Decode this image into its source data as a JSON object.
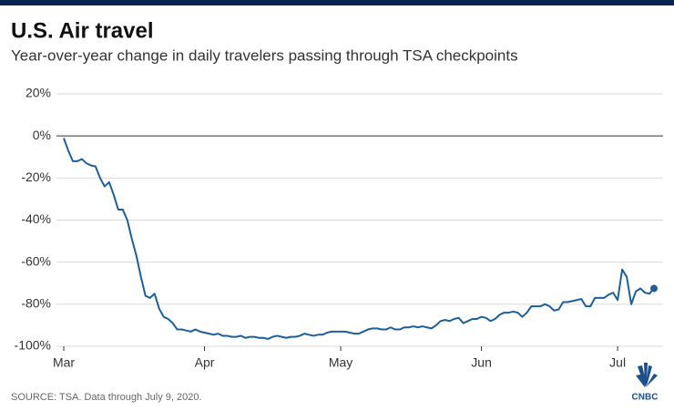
{
  "chart_data": {
    "type": "line",
    "title": "U.S. Air travel",
    "subtitle": "Year-over-year change in daily travelers passing through TSA checkpoints",
    "source": "SOURCE: TSA. Data through July 9, 2020.",
    "logo": "CNBC",
    "x": [
      0,
      1,
      2,
      3,
      4,
      5,
      6,
      7,
      8,
      9,
      10,
      11,
      12,
      13,
      14,
      15,
      16,
      17,
      18,
      19,
      20,
      21,
      22,
      23,
      24,
      25,
      26,
      27,
      28,
      29,
      30,
      31,
      32,
      33,
      34,
      35,
      36,
      37,
      38,
      39,
      40,
      41,
      42,
      43,
      44,
      45,
      46,
      47,
      48,
      49,
      50,
      51,
      52,
      53,
      54,
      55,
      56,
      57,
      58,
      59,
      60,
      61,
      62,
      63,
      64,
      65,
      66,
      67,
      68,
      69,
      70,
      71,
      72,
      73,
      74,
      75,
      76,
      77,
      78,
      79,
      80,
      81,
      82,
      83,
      84,
      85,
      86,
      87,
      88,
      89,
      90,
      91,
      92,
      93,
      94,
      95,
      96,
      97,
      98,
      99,
      100,
      101,
      102,
      103,
      104,
      105,
      106,
      107,
      108,
      109,
      110,
      111,
      112,
      113,
      114,
      115,
      116,
      117,
      118,
      119,
      120,
      121,
      122,
      123,
      124,
      125,
      126,
      127,
      128,
      129,
      130
    ],
    "series": [
      {
        "name": "Year-over-year change",
        "color": "#1d5f99",
        "values": [
          -1,
          -7,
          -12,
          -12,
          -11,
          -13,
          -14,
          -14.5,
          -20,
          -24,
          -22,
          -28,
          -35,
          -35,
          -40,
          -49,
          -57,
          -67,
          -76,
          -77,
          -75,
          -82,
          -86,
          -87,
          -89,
          -92,
          -92,
          -92.5,
          -93,
          -92,
          -93,
          -93.5,
          -94,
          -94.5,
          -94,
          -95,
          -95,
          -95.5,
          -95.5,
          -95,
          -96,
          -95.5,
          -95.5,
          -96,
          -96,
          -96.5,
          -95.5,
          -95,
          -95.5,
          -96,
          -95.5,
          -95.5,
          -95,
          -94,
          -94.5,
          -95,
          -94.5,
          -94.5,
          -93.5,
          -93,
          -93,
          -93,
          -93,
          -93.5,
          -94,
          -94,
          -93,
          -92,
          -91.5,
          -91.5,
          -92,
          -92,
          -91,
          -92,
          -92,
          -91,
          -91,
          -90.5,
          -91,
          -90.5,
          -91,
          -91.5,
          -90,
          -88,
          -87.5,
          -88,
          -87,
          -86.5,
          -89,
          -88,
          -87,
          -87,
          -86,
          -86.5,
          -88,
          -87,
          -85,
          -84,
          -84,
          -83.5,
          -84,
          -86,
          -84,
          -81,
          -81,
          -81,
          -80,
          -81,
          -83,
          -82.5,
          -79,
          -79,
          -78.5,
          -78,
          -77.5,
          -81,
          -81,
          -77,
          -77,
          -77,
          -75.5,
          -74.5,
          -78,
          -63.5,
          -67,
          -80,
          -74,
          -72.5,
          -74.5,
          -75,
          -72.5
        ]
      }
    ],
    "xlim": [
      0,
      130
    ],
    "xticks": [
      {
        "value": 0,
        "label": "Mar"
      },
      {
        "value": 31,
        "label": "Apr"
      },
      {
        "value": 61,
        "label": "May"
      },
      {
        "value": 92,
        "label": "Jun"
      },
      {
        "value": 122,
        "label": "Jul"
      }
    ],
    "ylim": [
      -100,
      20
    ],
    "yticks": [
      {
        "value": 20,
        "label": "20%"
      },
      {
        "value": 0,
        "label": "0%"
      },
      {
        "value": -20,
        "label": "-20%"
      },
      {
        "value": -40,
        "label": "-40%"
      },
      {
        "value": -60,
        "label": "-60%"
      },
      {
        "value": -80,
        "label": "-80%"
      },
      {
        "value": -100,
        "label": "-100%"
      }
    ],
    "grid": true
  }
}
